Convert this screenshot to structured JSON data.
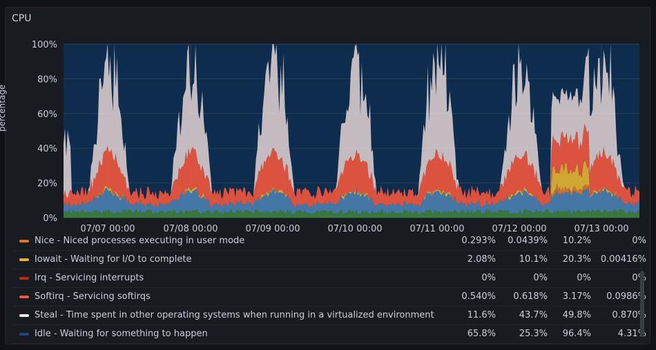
{
  "panel": {
    "title": "CPU"
  },
  "chart_data": {
    "type": "area",
    "ylabel": "percentage",
    "ylim": [
      0,
      100
    ],
    "y_ticks": [
      "0%",
      "20%",
      "40%",
      "60%",
      "80%",
      "100%"
    ],
    "x_ticks": [
      "07/07 00:00",
      "07/08 00:00",
      "07/09 00:00",
      "07/10 00:00",
      "07/11 00:00",
      "07/12 00:00",
      "07/13 00:00"
    ],
    "stacked": true,
    "series_colors": {
      "base": "#4a7fb0",
      "green": "#3f7f3a",
      "nice": "#e0752d",
      "iowait": "#e5b531",
      "softirq": "#f2573e",
      "steal": "#e3d5d5",
      "idle": "#0e2c4e"
    }
  },
  "legend": [
    {
      "name": "Nice - Niced processes executing in user mode",
      "color": "#e0752d",
      "values": [
        "0.293%",
        "0.0439%",
        "10.2%",
        "0%"
      ]
    },
    {
      "name": "Iowait - Waiting for I/O to complete",
      "color": "#e5b531",
      "values": [
        "2.08%",
        "10.1%",
        "20.3%",
        "0.00416%"
      ]
    },
    {
      "name": "Irq - Servicing interrupts",
      "color": "#c4260f",
      "values": [
        "0%",
        "0%",
        "0%",
        "0%"
      ]
    },
    {
      "name": "Softirq - Servicing softirqs",
      "color": "#f2573e",
      "values": [
        "0.540%",
        "0.618%",
        "3.17%",
        "0.0986%"
      ]
    },
    {
      "name": "Steal - Time spent in other operating systems when running in a virtualized environment",
      "color": "#f4e6e6",
      "values": [
        "11.6%",
        "43.7%",
        "49.8%",
        "0.870%"
      ]
    },
    {
      "name": "Idle - Waiting for something to happen",
      "color": "#1a4a7a",
      "values": [
        "65.8%",
        "25.3%",
        "96.4%",
        "4.31%"
      ]
    }
  ]
}
